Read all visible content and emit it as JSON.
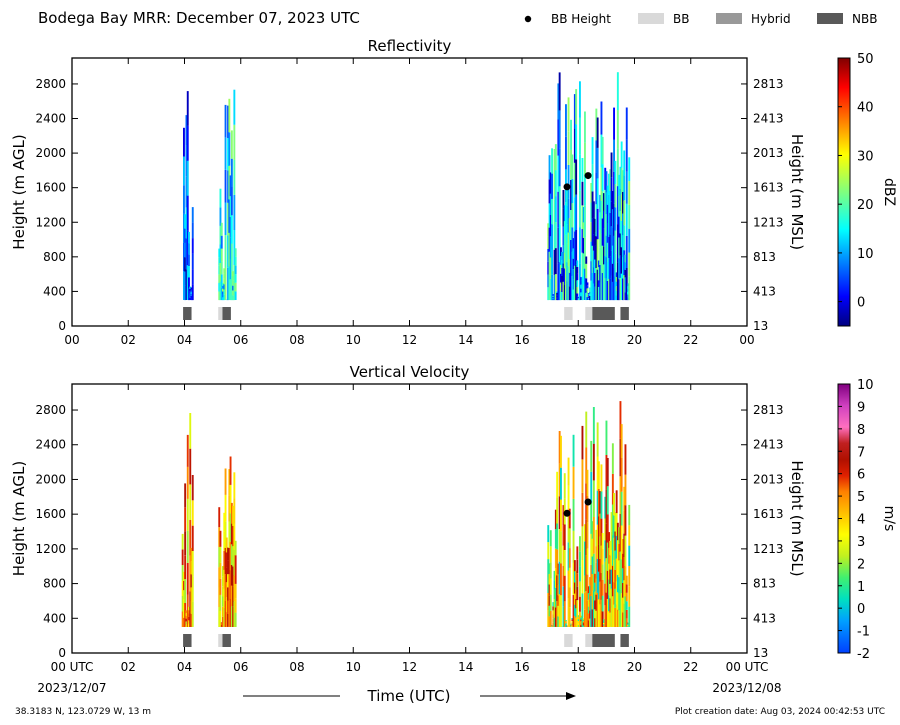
{
  "header": {
    "title": "Bodega Bay MRR:  December 07, 2023 UTC",
    "legend": [
      {
        "label": "BB Height",
        "marker": "dot",
        "color": "#000000"
      },
      {
        "label": "BB",
        "marker": "box",
        "color": "#d9d9d9"
      },
      {
        "label": "Hybrid",
        "marker": "box",
        "color": "#999999"
      },
      {
        "label": "NBB",
        "marker": "box",
        "color": "#595959"
      }
    ]
  },
  "footer": {
    "location": "38.3183 N, 123.0729 W, 13 m",
    "created": "Plot creation date: Aug 03, 2024 00:42:53 UTC",
    "xlabel": "Time (UTC)",
    "start_date": "2023/12/07",
    "end_date": "2023/12/08"
  },
  "chart_data": [
    {
      "type": "heatmap",
      "title": "Reflectivity",
      "ylabel": "Height (m AGL)",
      "ylabel_right": "Height (m MSL)",
      "xlabel": "Time (UTC)",
      "xlim": [
        0,
        24
      ],
      "ylim": [
        0,
        3100
      ],
      "x_ticks": [
        "00",
        "02",
        "04",
        "06",
        "08",
        "10",
        "12",
        "14",
        "16",
        "18",
        "20",
        "22",
        "00"
      ],
      "y_ticks": [
        0,
        400,
        800,
        1200,
        1600,
        2000,
        2400,
        2800
      ],
      "y_ticks_right": [
        13,
        413,
        813,
        1213,
        1613,
        2013,
        2413,
        2813
      ],
      "colorbar": {
        "label": "dBZ",
        "min": -5,
        "max": 50,
        "ticks": [
          0,
          10,
          20,
          30,
          40,
          50
        ],
        "cmap": "jet"
      },
      "echo_periods": [
        {
          "start": 3.9,
          "end": 4.3,
          "top": 2950,
          "value_range": [
            -5,
            15
          ]
        },
        {
          "start": 5.2,
          "end": 5.8,
          "top": 2850,
          "value_range": [
            5,
            25
          ]
        },
        {
          "start": 16.9,
          "end": 19.8,
          "top": 2950,
          "value_range": [
            -5,
            25
          ]
        }
      ],
      "bb_height_points": [
        {
          "x": 17.6,
          "y": 1610
        },
        {
          "x": 18.35,
          "y": 1740
        }
      ],
      "bb_classification": [
        {
          "start": 3.95,
          "end": 4.25,
          "class": "NBB"
        },
        {
          "start": 5.2,
          "end": 5.35,
          "class": "BB"
        },
        {
          "start": 5.35,
          "end": 5.65,
          "class": "NBB"
        },
        {
          "start": 17.5,
          "end": 17.8,
          "class": "BB"
        },
        {
          "start": 18.25,
          "end": 18.5,
          "class": "BB"
        },
        {
          "start": 18.5,
          "end": 19.3,
          "class": "NBB"
        },
        {
          "start": 19.5,
          "end": 19.8,
          "class": "NBB"
        }
      ]
    },
    {
      "type": "heatmap",
      "title": "Vertical Velocity",
      "ylabel": "Height (m AGL)",
      "ylabel_right": "Height (m MSL)",
      "xlabel": "Time (UTC)",
      "xlim": [
        0,
        24
      ],
      "ylim": [
        0,
        3100
      ],
      "x_ticks": [
        "00 UTC",
        "02",
        "04",
        "06",
        "08",
        "10",
        "12",
        "14",
        "16",
        "18",
        "20",
        "22",
        "00 UTC"
      ],
      "y_ticks": [
        0,
        400,
        800,
        1200,
        1600,
        2000,
        2400,
        2800
      ],
      "y_ticks_right": [
        13,
        413,
        813,
        1213,
        1613,
        2013,
        2413,
        2813
      ],
      "colorbar": {
        "label": "m/s",
        "min": -2,
        "max": 10,
        "ticks": [
          -2,
          -1,
          0,
          1,
          2,
          3,
          4,
          5,
          6,
          7,
          8,
          9,
          10
        ],
        "cmap": "velocity"
      },
      "echo_periods": [
        {
          "start": 3.9,
          "end": 4.3,
          "top": 2950,
          "value_range": [
            2,
            7
          ]
        },
        {
          "start": 5.2,
          "end": 5.8,
          "top": 2850,
          "value_range": [
            2,
            7
          ]
        },
        {
          "start": 16.9,
          "end": 19.8,
          "top": 2950,
          "value_range": [
            0,
            7
          ]
        }
      ],
      "bb_height_points": [
        {
          "x": 17.6,
          "y": 1610
        },
        {
          "x": 18.35,
          "y": 1740
        }
      ],
      "bb_classification": [
        {
          "start": 3.95,
          "end": 4.25,
          "class": "NBB"
        },
        {
          "start": 5.2,
          "end": 5.35,
          "class": "BB"
        },
        {
          "start": 5.35,
          "end": 5.65,
          "class": "NBB"
        },
        {
          "start": 17.5,
          "end": 17.8,
          "class": "BB"
        },
        {
          "start": 18.25,
          "end": 18.5,
          "class": "BB"
        },
        {
          "start": 18.5,
          "end": 19.3,
          "class": "NBB"
        },
        {
          "start": 19.5,
          "end": 19.8,
          "class": "NBB"
        }
      ]
    }
  ]
}
